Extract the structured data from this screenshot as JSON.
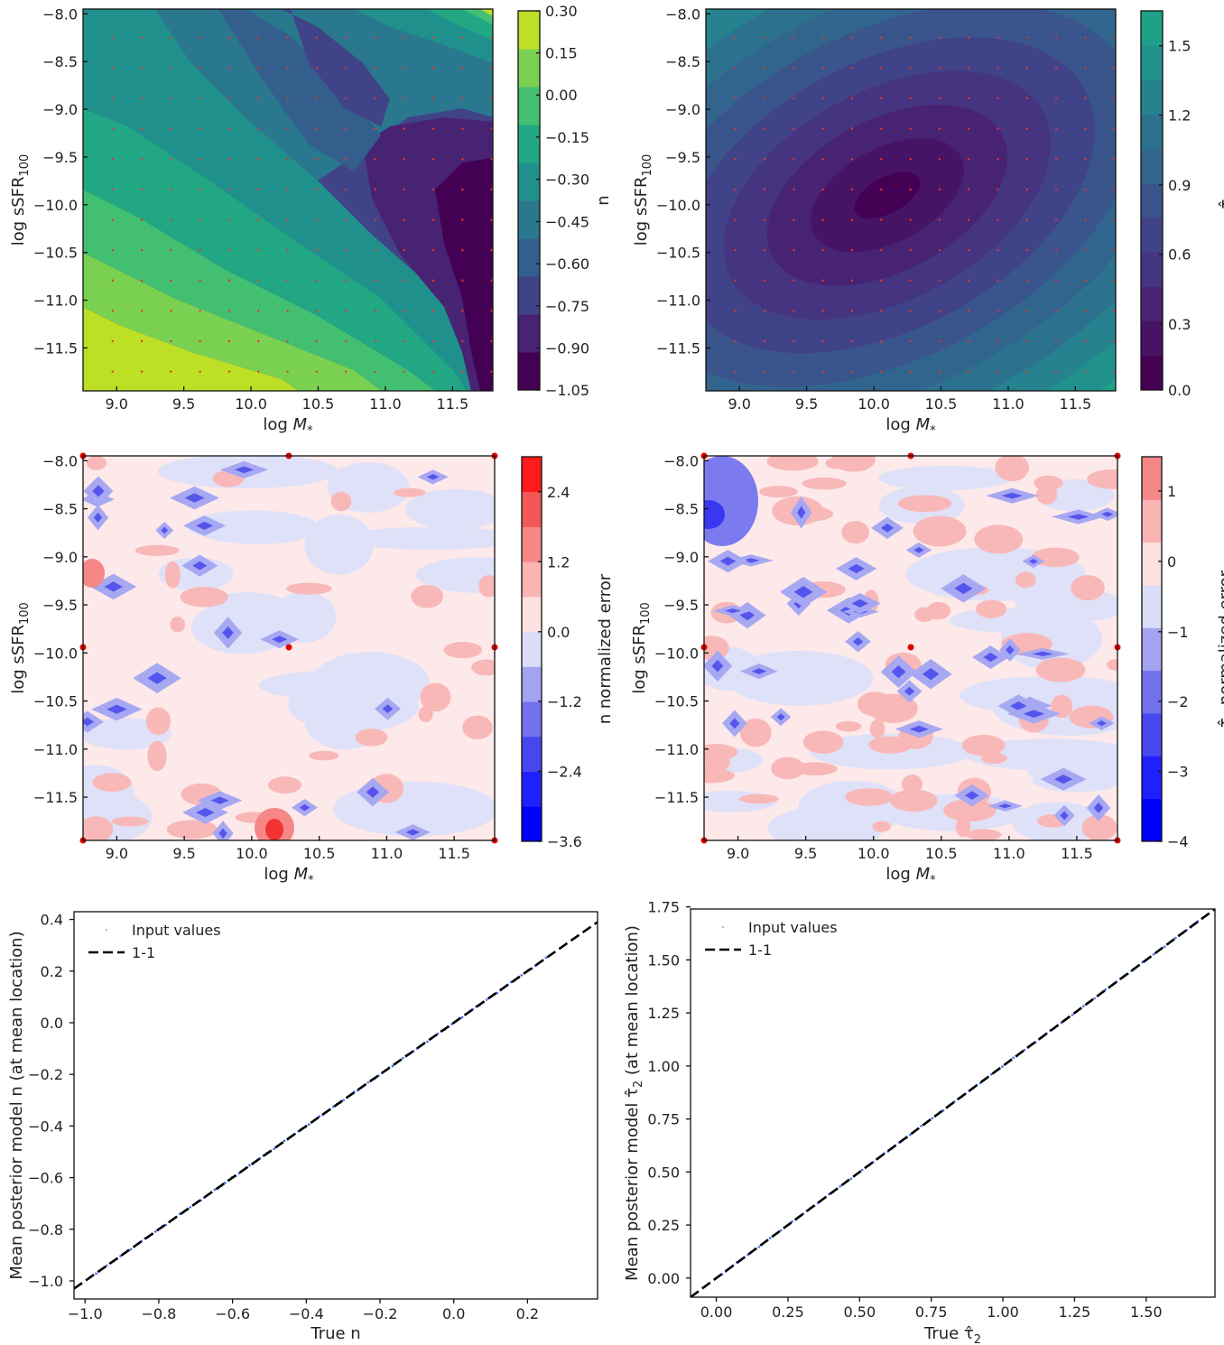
{
  "chart_data": [
    {
      "type": "heatmap",
      "panel": "n-map",
      "xlabel": "log M*",
      "ylabel": "log sSFR100",
      "xlim": [
        8.75,
        11.8
      ],
      "ylim": [
        -11.95,
        -7.95
      ],
      "xticks": [
        "9.0",
        "9.5",
        "10.0",
        "10.5",
        "11.0",
        "11.5"
      ],
      "yticks": [
        "-8.0",
        "-8.5",
        "-9.0",
        "-9.5",
        "-10.0",
        "-10.5",
        "-11.0",
        "-11.5"
      ],
      "colorbar_label": "n",
      "colorbar_ticks": [
        "0.30",
        "0.15",
        "0.00",
        "-0.15",
        "-0.30",
        "-0.45",
        "-0.60",
        "-0.75",
        "-0.90",
        "-1.05"
      ],
      "colorbar_colors": [
        "#440154",
        "#482374",
        "#404387",
        "#345f8d",
        "#29788e",
        "#20908c",
        "#22a784",
        "#43bf71",
        "#7ad151",
        "#bddf26"
      ],
      "points_color": "#e8342e"
    },
    {
      "type": "heatmap",
      "panel": "tau2-map",
      "xlabel": "log M*",
      "ylabel": "log sSFR100",
      "xlim": [
        8.75,
        11.8
      ],
      "ylim": [
        -11.95,
        -7.95
      ],
      "xticks": [
        "9.0",
        "9.5",
        "10.0",
        "10.5",
        "11.0",
        "11.5"
      ],
      "yticks": [
        "-8.0",
        "-8.5",
        "-9.0",
        "-9.5",
        "-10.0",
        "-10.5",
        "-11.0",
        "-11.5"
      ],
      "colorbar_label": "τ̂2",
      "colorbar_ticks": [
        "1.5",
        "1.2",
        "0.9",
        "0.6",
        "0.3",
        "0.0"
      ],
      "colorbar_colors": [
        "#440154",
        "#471365",
        "#482374",
        "#453581",
        "#404387",
        "#3a548c",
        "#32658e",
        "#2c728e",
        "#26828e",
        "#21918c",
        "#1fa088"
      ],
      "points_color": "#e8342e"
    },
    {
      "type": "heatmap",
      "panel": "n-error",
      "xlabel": "log M*",
      "ylabel": "log sSFR100",
      "xlim": [
        8.75,
        11.8
      ],
      "ylim": [
        -11.95,
        -7.95
      ],
      "xticks": [
        "9.0",
        "9.5",
        "10.0",
        "10.5",
        "11.0",
        "11.5"
      ],
      "yticks": [
        "-8.0",
        "-8.5",
        "-9.0",
        "-9.5",
        "-10.0",
        "-10.5",
        "-11.0",
        "-11.5"
      ],
      "colorbar_label": "n normalized error",
      "colorbar_ticks": [
        "2.4",
        "1.2",
        "0.0",
        "-1.2",
        "-2.4",
        "-3.6"
      ],
      "colorbar_colors": [
        "#0000ff",
        "#2020ff",
        "#4747f0",
        "#7272ee",
        "#a3a3f2",
        "#dadcf8",
        "#fde0e0",
        "#f9b4b4",
        "#f68787",
        "#f35858",
        "#ff1b1b"
      ]
    },
    {
      "type": "heatmap",
      "panel": "tau2-error",
      "xlabel": "log M*",
      "ylabel": "log sSFR100",
      "xlim": [
        8.75,
        11.8
      ],
      "ylim": [
        -11.95,
        -7.95
      ],
      "xticks": [
        "9.0",
        "9.5",
        "10.0",
        "10.5",
        "11.0",
        "11.5"
      ],
      "yticks": [
        "-8.0",
        "-8.5",
        "-9.0",
        "-9.5",
        "-10.0",
        "-10.5",
        "-11.0",
        "-11.5"
      ],
      "colorbar_label": "τ̂2 normalized error",
      "colorbar_ticks": [
        "1",
        "0",
        "-1",
        "-2",
        "-3",
        "-4"
      ],
      "colorbar_colors": [
        "#0000ff",
        "#2020ff",
        "#4747f0",
        "#7272ee",
        "#a3a3f2",
        "#dadcf8",
        "#fde0e0",
        "#f9b4b4",
        "#f68787"
      ]
    },
    {
      "type": "scatter",
      "panel": "n-1to1",
      "xlabel": "True n",
      "ylabel": "Mean posterior model n (at mean location)",
      "xlim": [
        -1.03,
        0.39
      ],
      "ylim": [
        -1.07,
        0.43
      ],
      "xticks": [
        -1.0,
        -0.8,
        -0.6,
        -0.4,
        -0.2,
        0.0,
        0.2
      ],
      "xticklabels": [
        "-1.0",
        "-0.8",
        "-0.6",
        "-0.4",
        "-0.2",
        "0.0",
        "0.2"
      ],
      "yticks": [
        0.4,
        0.2,
        0.0,
        -0.2,
        -0.4,
        -0.6,
        -0.8,
        -1.0
      ],
      "yticklabels": [
        "0.4",
        "0.2",
        "0.0",
        "-0.2",
        "-0.4",
        "-0.6",
        "-0.8",
        "-1.0"
      ],
      "points_range": [
        -0.97,
        0.25
      ],
      "legend": [
        "Input values",
        "1-1"
      ]
    },
    {
      "type": "scatter",
      "panel": "tau2-1to1",
      "xlabel": "True τ̂2",
      "ylabel": "Mean posterior model τ̂2 (at mean location)",
      "xlim": [
        -0.09,
        1.74
      ],
      "ylim": [
        -0.09,
        1.74
      ],
      "xticks": [
        0.0,
        0.25,
        0.5,
        0.75,
        1.0,
        1.25,
        1.5
      ],
      "xticklabels": [
        "0.00",
        "0.25",
        "0.50",
        "0.75",
        "1.00",
        "1.25",
        "1.50"
      ],
      "yticks": [
        1.75,
        1.5,
        1.25,
        1.0,
        0.75,
        0.5,
        0.25,
        0.0
      ],
      "yticklabels": [
        "1.75",
        "1.50",
        "1.25",
        "1.00",
        "0.75",
        "0.50",
        "0.25",
        "0.00"
      ],
      "points_range": [
        0.02,
        1.68
      ],
      "legend": [
        "Input values",
        "1-1"
      ]
    }
  ]
}
